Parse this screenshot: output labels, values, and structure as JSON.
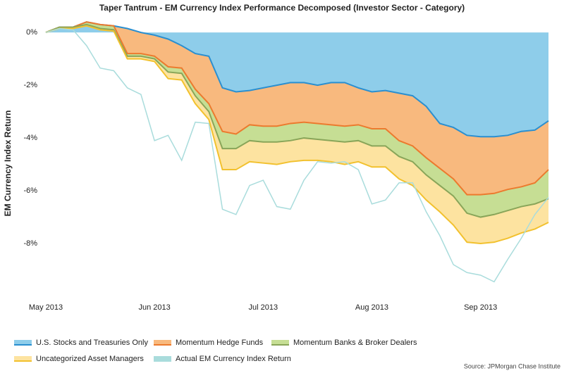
{
  "chart_data": {
    "type": "area",
    "title": "Taper Tantrum - EM Currency Index Performance Decomposed (Investor Sector - Category)",
    "y_label": "EM Currency Index Return",
    "source": "Source: JPMorgan Chase Institute",
    "x": [
      "May 2013",
      null,
      null,
      null,
      null,
      null,
      null,
      null,
      "Jun 2013",
      null,
      null,
      null,
      null,
      null,
      null,
      null,
      "Jul 2013",
      null,
      null,
      null,
      null,
      null,
      null,
      null,
      "Aug 2013",
      null,
      null,
      null,
      null,
      null,
      null,
      null,
      "Sep 2013",
      null,
      null,
      null,
      null,
      null
    ],
    "ylim": [
      -10.2,
      0.75
    ],
    "yticks": [
      {
        "value": 0,
        "label": "0%"
      },
      {
        "value": -2,
        "label": "-2%"
      },
      {
        "value": -4,
        "label": "-4%"
      },
      {
        "value": -6,
        "label": "-6%"
      },
      {
        "value": -8,
        "label": "-8%"
      }
    ],
    "series": [
      {
        "name": "U.S. Stocks and Treasuries Only",
        "stacked": true,
        "color": "#8ecdea",
        "line_color": "#2a8fd0",
        "values": [
          0,
          0.2,
          0.2,
          0.4,
          0.3,
          0.25,
          0.15,
          0,
          -0.1,
          -0.25,
          -0.5,
          -0.8,
          -0.9,
          -2.1,
          -2.25,
          -2.2,
          -2.1,
          -2.0,
          -1.9,
          -1.9,
          -2.0,
          -1.9,
          -1.9,
          -2.1,
          -2.25,
          -2.2,
          -2.3,
          -2.4,
          -2.8,
          -3.45,
          -3.6,
          -3.9,
          -3.95,
          -3.95,
          -3.9,
          -3.75,
          -3.7,
          -3.35
        ]
      },
      {
        "name": "Momentum Hedge Funds",
        "stacked": true,
        "color": "#f8b97e",
        "line_color": "#ec7a2e",
        "values": [
          0,
          0,
          0,
          0,
          0,
          0,
          -0.95,
          -0.8,
          -0.8,
          -1.05,
          -0.85,
          -1.35,
          -1.8,
          -1.65,
          -1.6,
          -1.3,
          -1.45,
          -1.55,
          -1.55,
          -1.5,
          -1.45,
          -1.6,
          -1.65,
          -1.4,
          -1.4,
          -1.45,
          -1.8,
          -1.9,
          -1.95,
          -1.7,
          -1.95,
          -2.25,
          -2.2,
          -2.15,
          -2.05,
          -2.1,
          -2.0,
          -1.85
        ]
      },
      {
        "name": "Momentum Banks & Broker Dealers",
        "stacked": true,
        "color": "#c6de94",
        "line_color": "#89a559",
        "values": [
          0,
          0,
          0,
          -0.1,
          -0.15,
          -0.15,
          -0.1,
          -0.1,
          -0.1,
          -0.2,
          -0.2,
          -0.25,
          -0.3,
          -0.65,
          -0.55,
          -0.6,
          -0.6,
          -0.6,
          -0.65,
          -0.6,
          -0.6,
          -0.6,
          -0.6,
          -0.6,
          -0.65,
          -0.65,
          -0.6,
          -0.6,
          -0.65,
          -0.65,
          -0.65,
          -0.7,
          -0.85,
          -0.8,
          -0.8,
          -0.75,
          -0.8,
          -1.1
        ]
      },
      {
        "name": "Uncategorized Asset Managers",
        "stacked": true,
        "color": "#fde3a0",
        "line_color": "#f2c12e",
        "values": [
          0,
          -0.05,
          -0.05,
          -0.05,
          -0.05,
          -0.05,
          -0.1,
          -0.1,
          -0.1,
          -0.25,
          -0.25,
          -0.3,
          -0.3,
          -0.8,
          -0.8,
          -0.8,
          -0.8,
          -0.85,
          -0.8,
          -0.85,
          -0.8,
          -0.8,
          -0.85,
          -0.8,
          -0.8,
          -0.8,
          -0.85,
          -0.9,
          -0.95,
          -1.0,
          -1.1,
          -1.1,
          -1.0,
          -1.05,
          -1.05,
          -1.0,
          -0.95,
          -0.9
        ]
      },
      {
        "name": "Actual EM Currency Index Return",
        "stacked": false,
        "color": "#a9dcdc",
        "line_color": "#a9dcdc",
        "values": [
          0,
          0.15,
          0.1,
          -0.5,
          -1.35,
          -1.45,
          -2.1,
          -2.35,
          -4.1,
          -3.9,
          -4.85,
          -3.4,
          -3.45,
          -6.7,
          -6.9,
          -5.8,
          -5.6,
          -6.6,
          -6.7,
          -5.6,
          -4.9,
          -4.95,
          -4.9,
          -5.2,
          -6.5,
          -6.35,
          -5.7,
          -5.7,
          -6.8,
          -7.7,
          -8.8,
          -9.1,
          -9.2,
          -9.45,
          -8.6,
          -7.8,
          -6.9,
          -6.25
        ]
      }
    ]
  }
}
